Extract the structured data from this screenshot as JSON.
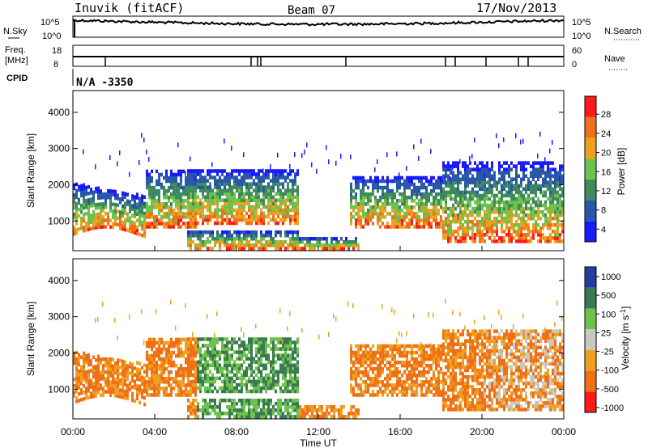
{
  "header": {
    "station": "Inuvik (fitACF)",
    "beam": "Beam 07",
    "date": "17/Nov/2013"
  },
  "sky_panel": {
    "left_label": "N.Sky",
    "right_label": "N.Search",
    "left_ticks": [
      "10^5",
      "10^0"
    ],
    "right_ticks": [
      "10^5",
      "10^0"
    ]
  },
  "freq_panel": {
    "left_label_1": "Freq.",
    "left_label_2": "[MHz]",
    "right_label": "Nave",
    "left_ticks": [
      "18",
      "8"
    ],
    "right_ticks": [
      "60",
      "0"
    ]
  },
  "cpid": {
    "label": "CPID",
    "value": "N/A -3350"
  },
  "chart_data": [
    {
      "type": "heatmap",
      "title": "Power",
      "ylabel": "Slant Range [km]",
      "xlabel": "Time UT",
      "ylim": [
        180,
        4600
      ],
      "yticks": [
        "1000",
        "2000",
        "3000",
        "4000"
      ],
      "colorbar_label": "Power [dB]",
      "colorbar_ticks": [
        "4",
        "8",
        "12",
        "16",
        "20",
        "24",
        "28"
      ],
      "colors": [
        "#1a1aff",
        "#2a58a8",
        "#3f8a5c",
        "#6cc24a",
        "#f0a020",
        "#f07018",
        "#ff1a1a"
      ]
    },
    {
      "type": "heatmap",
      "title": "Velocity",
      "ylabel": "Slant Range [km]",
      "xlabel": "Time UT",
      "ylim": [
        180,
        4600
      ],
      "yticks": [
        "1000",
        "2000",
        "3000",
        "4000"
      ],
      "colorbar_label": "Velocity [m s-1]",
      "colorbar_ticks": [
        "1000",
        "500",
        "100",
        "25",
        "-25",
        "-100",
        "-500",
        "-1000"
      ],
      "colors": [
        "#2040a0",
        "#3a7a52",
        "#6cc24a",
        "#c8c8c0",
        "#f0a020",
        "#f07018",
        "#ff1a1a"
      ]
    }
  ],
  "time_axis": {
    "label": "Time UT",
    "ticks": [
      "00:00",
      "04:00",
      "08:00",
      "12:00",
      "16:00",
      "20:00",
      "00:00"
    ]
  }
}
